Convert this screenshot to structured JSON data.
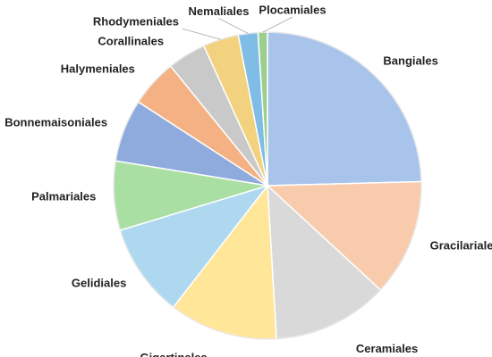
{
  "chart_data": {
    "type": "pie",
    "title": "",
    "start_angle_deg": 0,
    "direction": "clockwise",
    "slices": [
      {
        "label": "Bangiales",
        "value": 25.0,
        "color": "#A9C4EB"
      },
      {
        "label": "Gracilariales",
        "value": 12.5,
        "color": "#F8CBAD"
      },
      {
        "label": "Ceramiales",
        "value": 12.4,
        "color": "#D9D9D9"
      },
      {
        "label": "Gigartinales",
        "value": 11.6,
        "color": "#FFE699"
      },
      {
        "label": "Gelidiales",
        "value": 10.0,
        "color": "#ADD8F0"
      },
      {
        "label": "Palmariales",
        "value": 7.4,
        "color": "#A9DFA3"
      },
      {
        "label": "Bonnemaisoniales",
        "value": 6.7,
        "color": "#8FAADC"
      },
      {
        "label": "Halymeniales",
        "value": 5.1,
        "color": "#F4B183"
      },
      {
        "label": "Corallinales",
        "value": 4.1,
        "color": "#C9C9C9"
      },
      {
        "label": "Rhodymeniales",
        "value": 3.8,
        "color": "#F2D27E"
      },
      {
        "label": "Nemaliales",
        "value": 2.1,
        "color": "#7FBCE6"
      },
      {
        "label": "Plocamiales",
        "value": 1.0,
        "color": "#9CCF8F"
      }
    ]
  }
}
